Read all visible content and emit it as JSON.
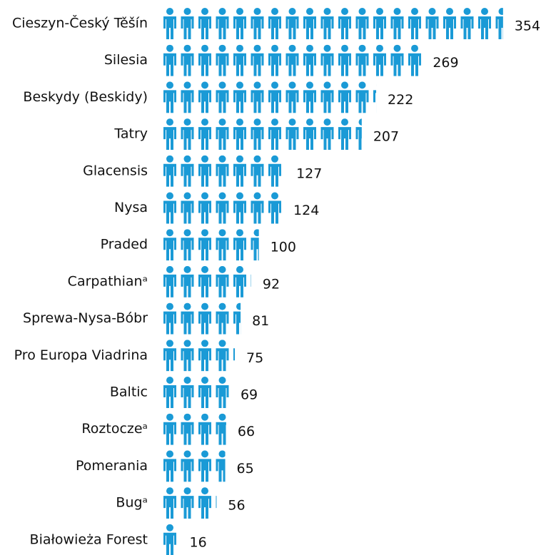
{
  "chart_data": {
    "type": "pictogram",
    "categories": [
      "Cieszyn-Český Těšín",
      "Silesia",
      "Beskydy (Beskidy)",
      "Tatry",
      "Glacensis",
      "Nysa",
      "Praded",
      "Carpathianᵃ",
      "Sprewa-Nysa-Bóbr",
      "Pro Europa Viadrina",
      "Baltic",
      "Roztoczeᵃ",
      "Pomerania",
      "Bugᵃ",
      "Białowieża Forest"
    ],
    "values": [
      354,
      269,
      222,
      207,
      127,
      124,
      100,
      92,
      81,
      75,
      69,
      66,
      65,
      56,
      16
    ],
    "color": "#1a9ad6"
  }
}
